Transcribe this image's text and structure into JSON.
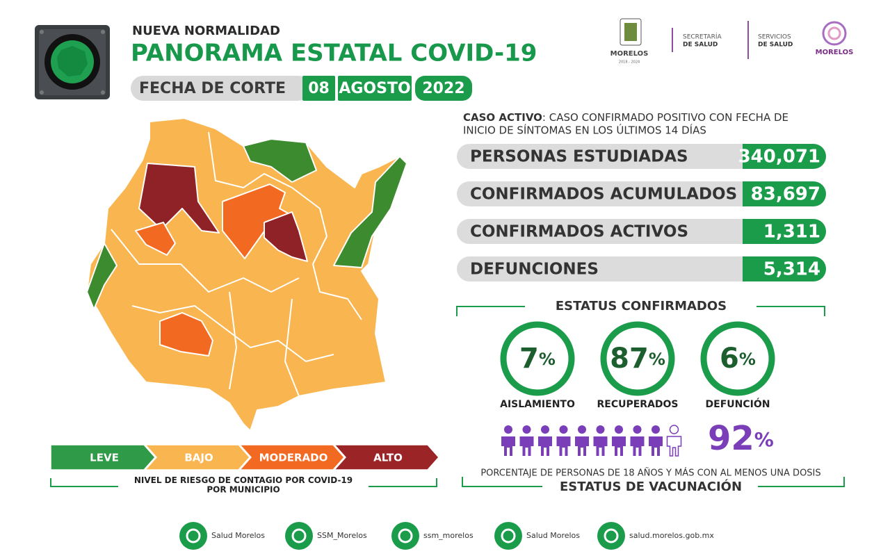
{
  "header": {
    "kicker": "NUEVA NORMALIDAD",
    "title": "PANORAMA ESTATAL COVID-19"
  },
  "date": {
    "label": "FECHA DE CORTE",
    "day": "08",
    "month": "AGOSTO",
    "year": "2022"
  },
  "logos": {
    "state": "MORELOS",
    "period": "2018 - 2024",
    "secretaria_1": "SECRETARÍA",
    "secretaria_2": "DE SALUD",
    "servicios_1": "SERVICIOS",
    "servicios_2": "DE SALUD",
    "brand": "MORELOS"
  },
  "definition": {
    "term": "CASO ACTIVO",
    "line1": ": CASO CONFIRMADO POSITIVO CON FECHA DE",
    "line2": "INICIO DE SÍNTOMAS EN LOS ÚLTIMOS 14 DÍAS"
  },
  "stats": [
    {
      "label": "PERSONAS ESTUDIADAS",
      "value": "340,071"
    },
    {
      "label": "CONFIRMADOS ACUMULADOS",
      "value": "83,697"
    },
    {
      "label": "CONFIRMADOS ACTIVOS",
      "value": "1,311"
    },
    {
      "label": "DEFUNCIONES",
      "value": "5,314"
    }
  ],
  "status": {
    "title": "ESTATUS CONFIRMADOS",
    "items": [
      {
        "value": "7",
        "unit": "%",
        "label": "AISLAMIENTO"
      },
      {
        "value": "87",
        "unit": "%",
        "label": "RECUPERADOS"
      },
      {
        "value": "6",
        "unit": "%",
        "label": "DEFUNCIÓN"
      }
    ]
  },
  "vaccination": {
    "value": "92",
    "unit": "%",
    "caption": "PORCENTAJE DE PERSONAS DE 18 AÑOS Y MÁS CON AL MENOS UNA DOSIS",
    "title": "ESTATUS DE VACUNACIÓN"
  },
  "legend": {
    "levels": [
      "LEVE",
      "BAJO",
      "MODERADO",
      "ALTO"
    ],
    "caption_1": "NIVEL DE RIESGO DE CONTAGIO POR ",
    "caption_bold": "COVID-19",
    "caption_2": "POR MUNICIPIO"
  },
  "footer": [
    "Salud Morelos",
    "SSM_Morelos",
    "ssm_morelos",
    "Salud Morelos",
    "salud.morelos.gob.mx"
  ]
}
